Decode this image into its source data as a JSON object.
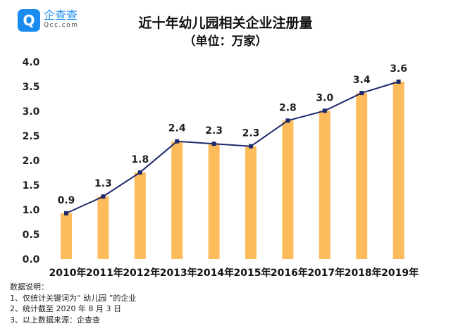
{
  "logo": {
    "mark": "Q",
    "name": "企查查",
    "domain": "Qcc.com"
  },
  "chart_data": {
    "type": "bar+line",
    "title": "近十年幼儿园相关企业注册量",
    "subtitle": "（单位：万家）",
    "categories": [
      "2010年",
      "2011年",
      "2012年",
      "2013年",
      "2014年",
      "2015年",
      "2016年",
      "2017年",
      "2018年",
      "2019年"
    ],
    "values": [
      0.93,
      1.27,
      1.76,
      2.39,
      2.34,
      2.29,
      2.81,
      3.01,
      3.37,
      3.6
    ],
    "data_labels": [
      "0.9",
      "1.3",
      "1.8",
      "2.4",
      "2.3",
      "2.3",
      "2.8",
      "3.0",
      "3.4",
      "3.6"
    ],
    "yticks": [
      "0.0",
      "0.5",
      "1.0",
      "1.5",
      "2.0",
      "2.5",
      "3.0",
      "3.5",
      "4.0"
    ],
    "ylim": [
      0,
      4.0
    ],
    "grid": false,
    "colors": {
      "bar": "#fdbb5c",
      "line": "#1f2a6b",
      "marker": "#1f2a6b"
    }
  },
  "notes": {
    "heading": "数据说明：",
    "items": [
      "1、仅统计关键词为“ 幼儿园 ”的企业",
      "2、统计截至 2020 年 8 月 3 日",
      "3、以上数据来源：企查查"
    ]
  }
}
